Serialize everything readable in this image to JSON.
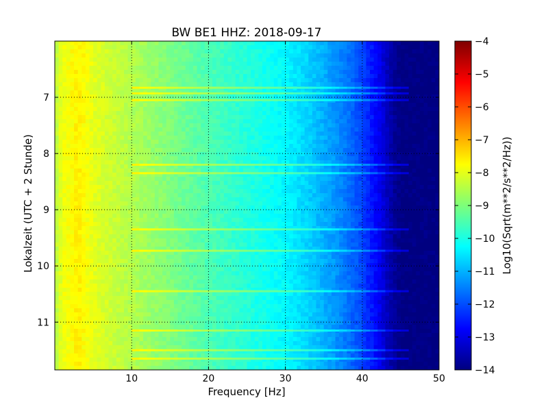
{
  "chart_data": {
    "type": "heatmap",
    "title": "BW BE1 HHZ: 2018-09-17",
    "xlabel": "Frequency [Hz]",
    "ylabel": "Lokalzeit (UTC + 2 Stunde)",
    "xlim": [
      0,
      50
    ],
    "ylim": [
      11.85,
      6.0
    ],
    "x_ticks": [
      10,
      20,
      30,
      40,
      50
    ],
    "y_ticks": [
      7,
      8,
      9,
      10,
      11
    ],
    "grid": true,
    "colormap": "jet",
    "colorbar": {
      "label": "Log10(Sqrt(m**2/s**2/Hz))",
      "range": [
        -14,
        -4
      ],
      "ticks": [
        -4,
        -5,
        -6,
        -7,
        -8,
        -9,
        -10,
        -11,
        -12,
        -13,
        -14
      ]
    },
    "profile": {
      "frequency_hz": [
        0,
        1,
        2,
        3,
        5,
        8,
        12,
        16,
        20,
        25,
        30,
        33,
        36,
        38,
        40,
        42,
        43.5,
        45,
        50
      ],
      "log_psd": [
        -8.5,
        -7.9,
        -7.8,
        -7.6,
        -8.0,
        -8.3,
        -8.7,
        -9.1,
        -9.5,
        -9.9,
        -10.3,
        -10.7,
        -11.2,
        -11.6,
        -12.1,
        -12.8,
        -13.5,
        -14,
        -14
      ]
    },
    "bands_hours": [
      6.83,
      6.93,
      7.05,
      8.2,
      8.35,
      9.35,
      9.73,
      10.45,
      11.15,
      11.5,
      11.65
    ]
  }
}
